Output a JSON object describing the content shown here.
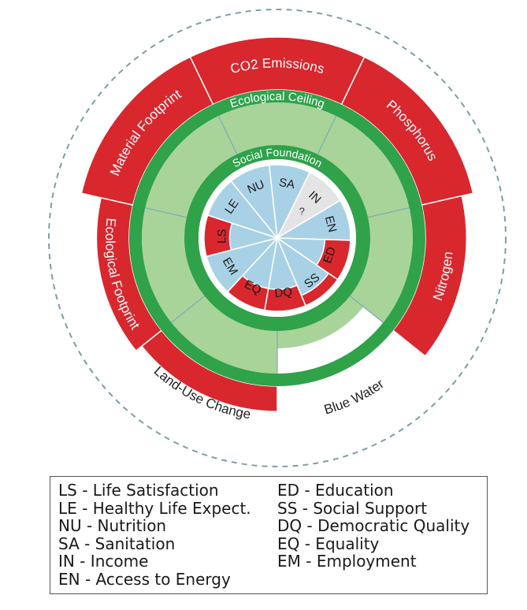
{
  "colors": {
    "overshoot": "#d9272e",
    "safe_space": "#a8d49a",
    "ring": "#2fa24a",
    "social_met": "#a9d1e6",
    "social_unknown": "#e4e4e4",
    "white": "#ffffff"
  },
  "rings": {
    "ecological_ceiling": "Ecological Ceiling",
    "social_foundation": "Social Foundation"
  },
  "ecological": [
    {
      "label": "CO2 Emissions",
      "overshoot": 1.0
    },
    {
      "label": "Phosphorus",
      "overshoot": 1.0
    },
    {
      "label": "Nitrogen",
      "overshoot": 0.78
    },
    {
      "label": "Blue Water",
      "overshoot": 0.0
    },
    {
      "label": "Land-Use Change",
      "overshoot": 0.48
    },
    {
      "label": "Ecological Footprint",
      "overshoot": 0.62
    },
    {
      "label": "Material Footprint",
      "overshoot": 1.0
    }
  ],
  "social": [
    {
      "code": "SA",
      "state": "met"
    },
    {
      "code": "IN",
      "state": "unknown",
      "note": "?"
    },
    {
      "code": "EN",
      "state": "met"
    },
    {
      "code": "ED",
      "state": "shortfall",
      "depth": 0.35
    },
    {
      "code": "SS",
      "state": "shortfall",
      "depth": 0.15
    },
    {
      "code": "DQ",
      "state": "shortfall",
      "depth": 0.3
    },
    {
      "code": "EQ",
      "state": "shortfall",
      "depth": 0.3
    },
    {
      "code": "EM",
      "state": "met"
    },
    {
      "code": "LS",
      "state": "shortfall",
      "depth": 0.35
    },
    {
      "code": "LE",
      "state": "met"
    },
    {
      "code": "NU",
      "state": "met"
    }
  ],
  "legend": {
    "left": [
      "LS - Life Satisfaction",
      "LE - Healthy Life Expect.",
      "NU - Nutrition",
      "SA - Sanitation",
      "IN - Income",
      "EN - Access to Energy"
    ],
    "right": [
      "ED - Education",
      "SS - Social Support",
      "DQ - Democratic Quality",
      "EQ - Equality",
      "EM - Employment"
    ]
  }
}
